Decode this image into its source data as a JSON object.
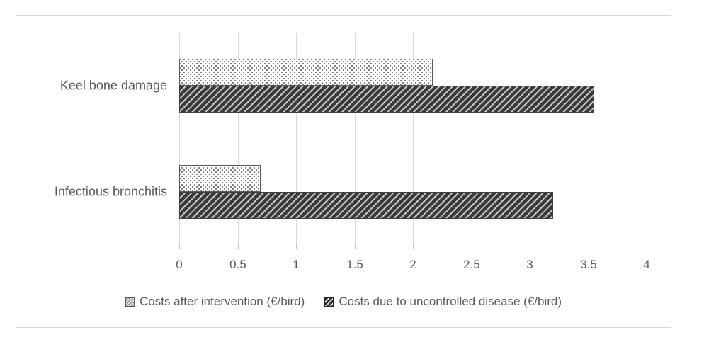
{
  "figure": {
    "background": "#ffffff",
    "border_color": "#d6d6d6"
  },
  "chart_data": {
    "type": "bar",
    "orientation": "horizontal",
    "title": "",
    "xlabel": "",
    "ylabel": "",
    "categories": [
      "Keel bone damage",
      "Infectious bronchitis"
    ],
    "category_keys": [
      "keel-bone-damage",
      "infectious-bronchitis"
    ],
    "series": [
      {
        "name": "Costs after intervention (€/bird)",
        "key": "costs-after-intervention",
        "pattern": "dots",
        "values": [
          2.17,
          0.7
        ]
      },
      {
        "name": "Costs due to uncontrolled disease (€/bird)",
        "key": "costs-uncontrolled-disease",
        "pattern": "hatch",
        "values": [
          3.55,
          3.2
        ]
      }
    ],
    "xlim": [
      0,
      4
    ],
    "xticks": [
      0,
      0.5,
      1,
      1.5,
      2,
      2.5,
      3,
      3.5,
      4
    ],
    "xtick_labels": [
      "0",
      "0.5",
      "1",
      "1.5",
      "2",
      "2.5",
      "3",
      "3.5",
      "4"
    ],
    "grid": "vertical",
    "legend_position": "bottom",
    "colors": {
      "text": "#595959",
      "gridline": "#d9d9d9",
      "hatch_dark": "#3a3a3a",
      "dot_gray": "#808080",
      "bar_fill_light": "#ffffff"
    }
  }
}
